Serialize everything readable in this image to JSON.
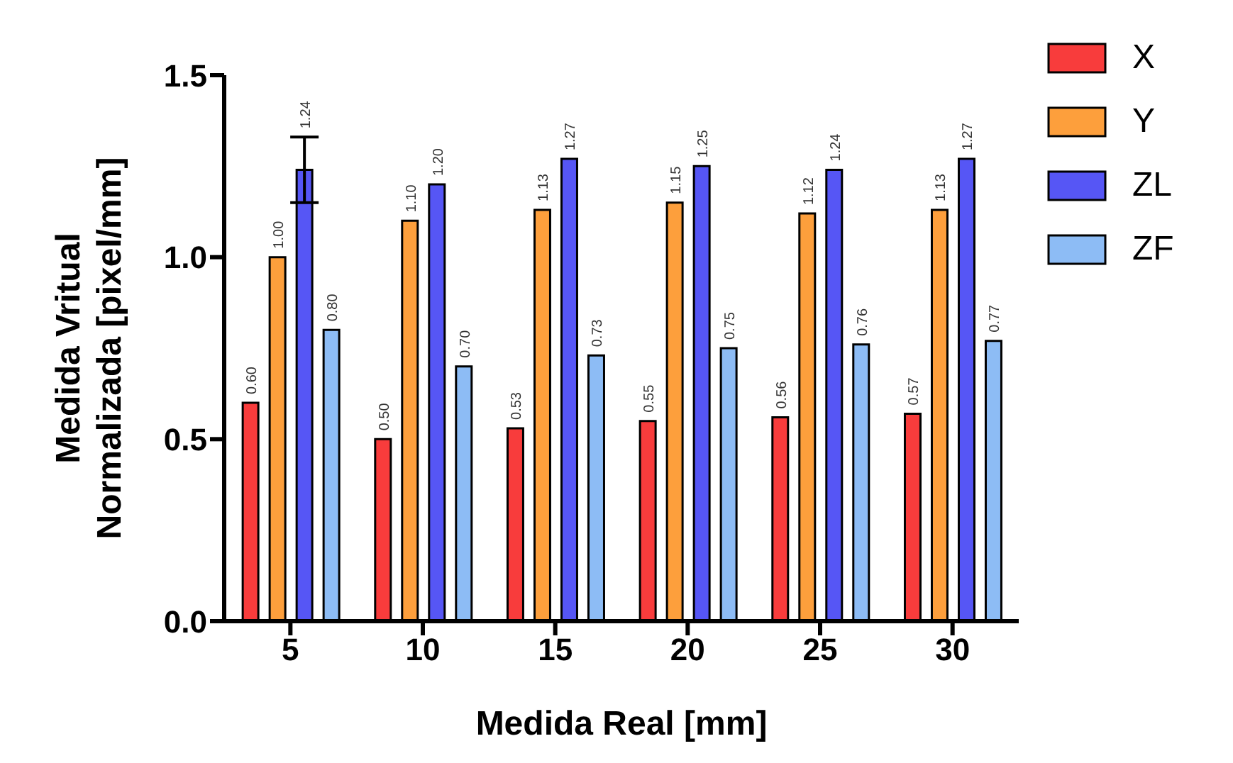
{
  "chart_data": {
    "type": "bar",
    "xlabel": "Medida Real [mm]",
    "ylabel": "Medida Vritual Normalizada [pixel/mm]",
    "categories": [
      "5",
      "10",
      "15",
      "20",
      "25",
      "30"
    ],
    "series": [
      {
        "name": "X",
        "color": "#f83c3c",
        "values": [
          0.6,
          0.5,
          0.53,
          0.55,
          0.56,
          0.57
        ],
        "value_labels": [
          "0.60",
          "0.50",
          "0.53",
          "0.55",
          "0.56",
          "0.57"
        ]
      },
      {
        "name": "Y",
        "color": "#fd9f3c",
        "values": [
          1.0,
          1.1,
          1.13,
          1.15,
          1.12,
          1.13
        ],
        "value_labels": [
          "1.00",
          "1.10",
          "1.13",
          "1.15",
          "1.12",
          "1.13"
        ]
      },
      {
        "name": "ZL",
        "color": "#5656f5",
        "values": [
          1.24,
          1.2,
          1.27,
          1.25,
          1.24,
          1.27
        ],
        "value_labels": [
          "1.24",
          "1.20",
          "1.27",
          "1.25",
          "1.24",
          "1.27"
        ],
        "errors": [
          0.09,
          null,
          null,
          null,
          null,
          null
        ]
      },
      {
        "name": "ZF",
        "color": "#8dbcf5",
        "values": [
          0.8,
          0.7,
          0.73,
          0.75,
          0.76,
          0.77
        ],
        "value_labels": [
          "0.80",
          "0.70",
          "0.73",
          "0.75",
          "0.76",
          "0.77"
        ]
      }
    ],
    "ylim": [
      0,
      1.5
    ],
    "yticks": [
      {
        "value": 0,
        "label": "0.0"
      },
      {
        "value": 0.5,
        "label": "0.5"
      },
      {
        "value": 1,
        "label": "1.0"
      },
      {
        "value": 1.5,
        "label": "1.5"
      }
    ],
    "grid": false,
    "legend": "top right"
  }
}
